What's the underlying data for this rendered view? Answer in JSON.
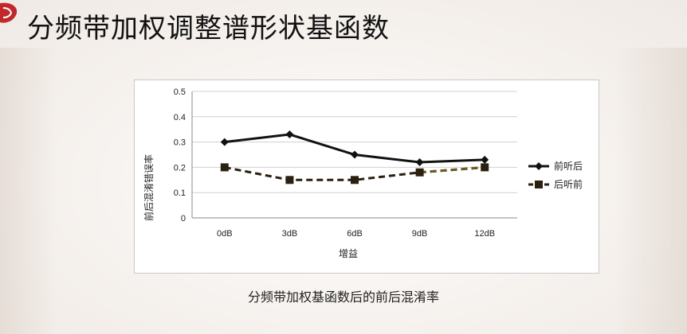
{
  "slide": {
    "title": "分频带加权调整谱形状基函数",
    "caption": "分频带加权基函数后的前后混淆率"
  },
  "colors": {
    "series1": "#111111",
    "series2": "#2a2010",
    "series2_tail": "#6b5a1a",
    "logo_red": "#c0282a"
  },
  "chart_data": {
    "type": "line",
    "categories": [
      "0dB",
      "3dB",
      "6dB",
      "9dB",
      "12dB"
    ],
    "series": [
      {
        "name": "前听后",
        "values": [
          0.3,
          0.33,
          0.25,
          0.22,
          0.23
        ],
        "marker": "diamond",
        "line": "solid"
      },
      {
        "name": "后听前",
        "values": [
          0.2,
          0.15,
          0.15,
          0.18,
          0.2
        ],
        "marker": "square",
        "line": "dashed"
      }
    ],
    "title": "",
    "xlabel": "增益",
    "ylabel": "前后混淆错误率",
    "ylim": [
      0,
      0.5
    ],
    "yticks": [
      "0",
      "0.1",
      "0.2",
      "0.3",
      "0.4",
      "0.5"
    ],
    "grid": "horizontal",
    "legend_position": "right"
  }
}
